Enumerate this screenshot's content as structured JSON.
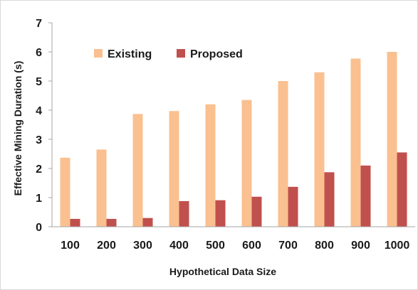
{
  "chart_data": {
    "type": "bar",
    "title": "",
    "xlabel": "Hypothetical Data Size",
    "ylabel": "Effective Mining Duration (s)",
    "categories": [
      "100",
      "200",
      "300",
      "400",
      "500",
      "600",
      "700",
      "800",
      "900",
      "1000"
    ],
    "ylim": [
      0,
      7
    ],
    "yticks": [
      "0",
      "1",
      "2",
      "3",
      "4",
      "5",
      "6",
      "7"
    ],
    "grid": false,
    "legend_position": "top-left",
    "series": [
      {
        "name": "Existing",
        "color": "#fac090",
        "values": [
          2.37,
          2.65,
          3.87,
          3.97,
          4.2,
          4.35,
          5.0,
          5.3,
          5.77,
          6.0
        ]
      },
      {
        "name": "Proposed",
        "color": "#c0504d",
        "values": [
          0.27,
          0.27,
          0.3,
          0.88,
          0.91,
          1.03,
          1.37,
          1.87,
          2.1,
          2.55
        ]
      }
    ]
  }
}
